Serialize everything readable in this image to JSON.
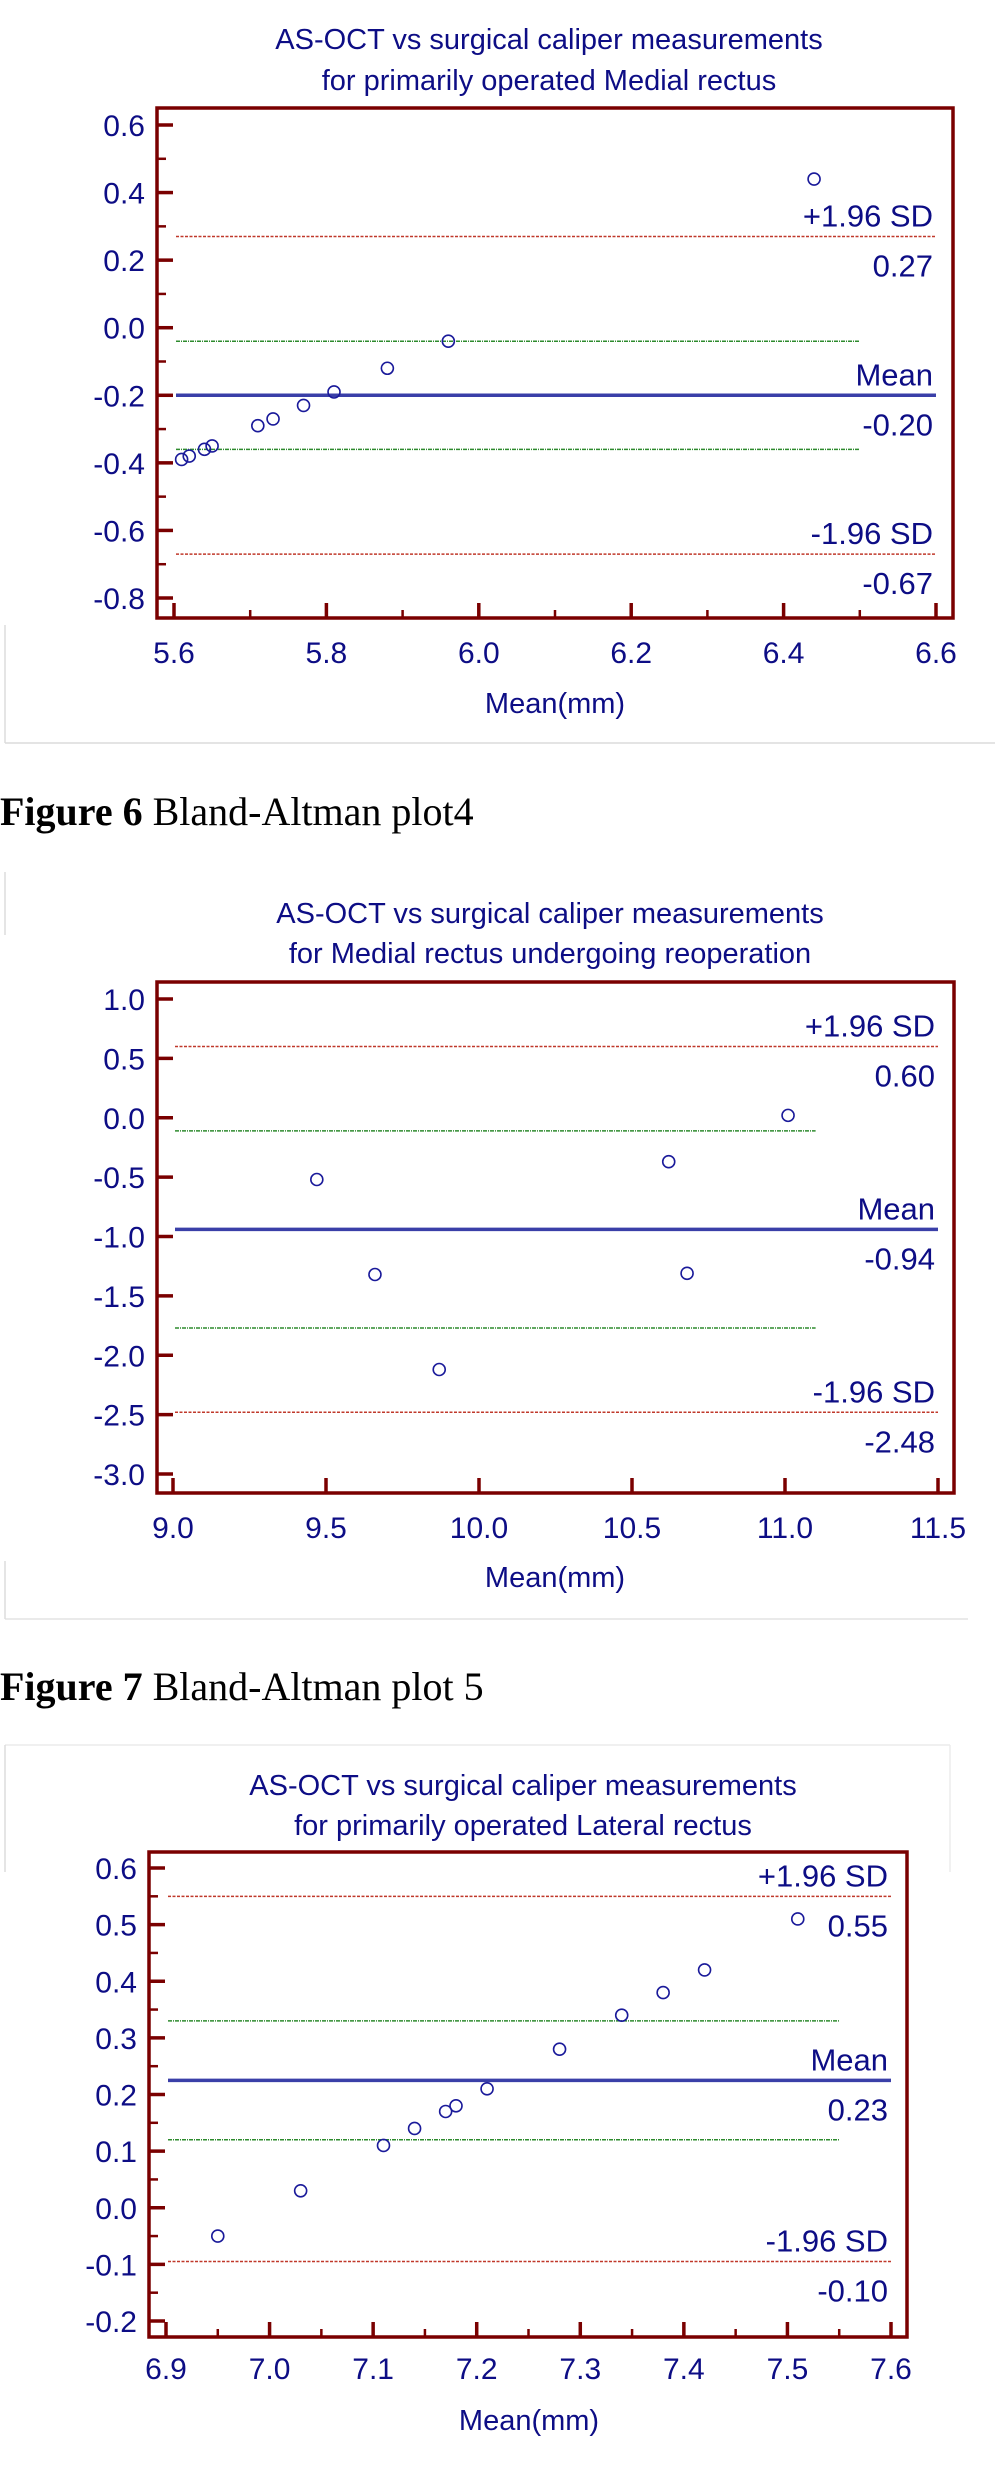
{
  "colors": {
    "text": "#0d0d85",
    "frame": "#7a0000",
    "mean_line": "#3a3fa8",
    "limit_line": "#c0392b",
    "ci_line": "#2e8b2e",
    "point": "#1a1a9a"
  },
  "captions": [
    {
      "bold": "Figure 6",
      "text": "Bland-Altman plot4"
    },
    {
      "bold": "Figure 7",
      "text": "Bland-Altman plot 5"
    }
  ],
  "chart_data": [
    {
      "type": "scatter",
      "title": [
        "AS-OCT vs surgical caliper measurements",
        "for primarily operated Medial rectus"
      ],
      "xlabel": "Mean(mm)",
      "ylabel": "",
      "xlim": [
        5.6,
        6.6
      ],
      "ylim": [
        -0.8,
        0.6
      ],
      "xticks": [
        "5.6",
        "5.8",
        "6.0",
        "6.2",
        "6.4",
        "6.6"
      ],
      "yticks": [
        "0.6",
        "0.4",
        "0.2",
        "0.0",
        "-0.2",
        "-0.4",
        "-0.6",
        "-0.8"
      ],
      "points": [
        [
          5.61,
          -0.39
        ],
        [
          5.62,
          -0.38
        ],
        [
          5.64,
          -0.36
        ],
        [
          5.65,
          -0.35
        ],
        [
          5.71,
          -0.29
        ],
        [
          5.73,
          -0.27
        ],
        [
          5.77,
          -0.23
        ],
        [
          5.81,
          -0.19
        ],
        [
          5.88,
          -0.12
        ],
        [
          5.96,
          -0.04
        ],
        [
          6.44,
          0.44
        ]
      ],
      "reference_lines": [
        {
          "kind": "upper",
          "label": "+1.96 SD",
          "value": 0.27,
          "value_text": "0.27"
        },
        {
          "kind": "mean",
          "label": "Mean",
          "value": -0.2,
          "value_text": "-0.20"
        },
        {
          "kind": "lower",
          "label": "-1.96 SD",
          "value": -0.67,
          "value_text": "-0.67"
        }
      ],
      "ci_lines": [
        {
          "value": -0.04,
          "x_range": [
            5.6,
            6.5
          ]
        },
        {
          "value": -0.36,
          "x_range": [
            5.6,
            6.5
          ]
        }
      ]
    },
    {
      "type": "scatter",
      "title": [
        "AS-OCT vs surgical caliper measurements",
        "for Medial rectus undergoing reoperation"
      ],
      "xlabel": "Mean(mm)",
      "ylabel": "",
      "xlim": [
        9.0,
        11.5
      ],
      "ylim": [
        -3.0,
        1.0
      ],
      "xticks": [
        "9.0",
        "9.5",
        "10.0",
        "10.5",
        "11.0",
        "11.5"
      ],
      "yticks": [
        "1.0",
        "0.5",
        "0.0",
        "-0.5",
        "-1.0",
        "-1.5",
        "-2.0",
        "-2.5",
        "-3.0"
      ],
      "points": [
        [
          9.47,
          -0.52
        ],
        [
          9.66,
          -1.32
        ],
        [
          9.87,
          -2.12
        ],
        [
          10.62,
          -0.37
        ],
        [
          10.68,
          -1.31
        ],
        [
          11.01,
          0.02
        ]
      ],
      "reference_lines": [
        {
          "kind": "upper",
          "label": "+1.96 SD",
          "value": 0.6,
          "value_text": "0.60"
        },
        {
          "kind": "mean",
          "label": "Mean",
          "value": -0.94,
          "value_text": "-0.94"
        },
        {
          "kind": "lower",
          "label": "-1.96 SD",
          "value": -2.48,
          "value_text": "-2.48"
        }
      ],
      "ci_lines": [
        {
          "value": -0.11,
          "x_range": [
            9.0,
            11.1
          ]
        },
        {
          "value": -1.77,
          "x_range": [
            9.0,
            11.1
          ]
        }
      ]
    },
    {
      "type": "scatter",
      "title": [
        "AS-OCT vs surgical caliper measurements",
        "for primarily operated Lateral rectus"
      ],
      "xlabel": "Mean(mm)",
      "ylabel": "",
      "xlim": [
        6.9,
        7.6
      ],
      "ylim": [
        -0.2,
        0.6
      ],
      "xticks": [
        "6.9",
        "7.0",
        "7.1",
        "7.2",
        "7.3",
        "7.4",
        "7.5",
        "7.6"
      ],
      "yticks": [
        "0.6",
        "0.5",
        "0.4",
        "0.3",
        "0.2",
        "0.1",
        "0.0",
        "-0.1",
        "-0.2"
      ],
      "points": [
        [
          6.95,
          -0.05
        ],
        [
          7.03,
          0.03
        ],
        [
          7.11,
          0.11
        ],
        [
          7.14,
          0.14
        ],
        [
          7.17,
          0.17
        ],
        [
          7.18,
          0.18
        ],
        [
          7.21,
          0.21
        ],
        [
          7.28,
          0.28
        ],
        [
          7.34,
          0.34
        ],
        [
          7.38,
          0.38
        ],
        [
          7.42,
          0.42
        ],
        [
          7.51,
          0.51
        ]
      ],
      "reference_lines": [
        {
          "kind": "upper",
          "label": "+1.96 SD",
          "value": 0.55,
          "value_text": "0.55"
        },
        {
          "kind": "mean",
          "label": "Mean",
          "value": 0.225,
          "value_text": "0.23"
        },
        {
          "kind": "lower",
          "label": "-1.96 SD",
          "value": -0.095,
          "value_text": "-0.10"
        }
      ],
      "ci_lines": [
        {
          "value": 0.33,
          "x_range": [
            6.9,
            7.55
          ]
        },
        {
          "value": 0.12,
          "x_range": [
            6.9,
            7.55
          ]
        }
      ]
    }
  ]
}
